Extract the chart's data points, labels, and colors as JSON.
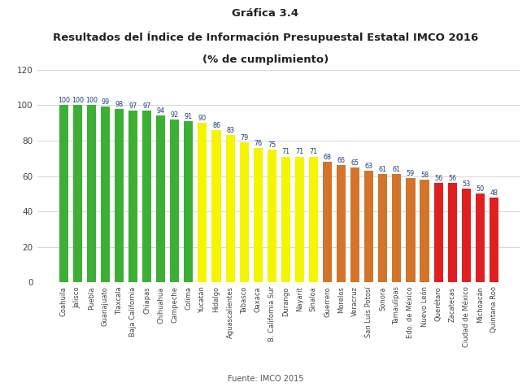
{
  "title_line1": "Gráfica 3.4",
  "title_line2": "Resultados del Índice de Información Presupuestal Estatal IMCO 2016",
  "title_line3": "(% de cumplimiento)",
  "footnote": "Fuente: IMCO 2015",
  "categories": [
    "Coahuila",
    "Jalisco",
    "Puebla",
    "Guanajuato",
    "Tlaxcala",
    "Baja California",
    "Chiapas",
    "Chihuahua",
    "Campeche",
    "Colima",
    "Yucatán",
    "Hidalgo",
    "Aguascalientes",
    "Tabasco",
    "Oaxaca",
    "B. California Sur",
    "Durango",
    "Nayarit",
    "Sinaloa",
    "Guerrero",
    "Morelos",
    "Veracruz",
    "San Luis Potosí",
    "Sonora",
    "Tamaulipas",
    "Edo. de México",
    "Nuevo León",
    "Querétaro",
    "Zacatecas",
    "Ciudad de México",
    "Michoacán",
    "Quintana Roo"
  ],
  "values": [
    100,
    100,
    100,
    99,
    98,
    97,
    97,
    94,
    92,
    91,
    90,
    86,
    83,
    79,
    76,
    75,
    71,
    71,
    71,
    68,
    66,
    65,
    63,
    61,
    61,
    59,
    58,
    56,
    56,
    53,
    50,
    48
  ],
  "colors": [
    "#3cb034",
    "#3cb034",
    "#3cb034",
    "#3cb034",
    "#3cb034",
    "#3cb034",
    "#3cb034",
    "#3cb034",
    "#3cb034",
    "#3cb034",
    "#f5f500",
    "#f5f500",
    "#f5f500",
    "#f5f500",
    "#f5f500",
    "#f5f500",
    "#f5f500",
    "#f5f500",
    "#f5f500",
    "#d4742a",
    "#d4742a",
    "#d4742a",
    "#d4742a",
    "#d4742a",
    "#d4742a",
    "#d4742a",
    "#d4742a",
    "#e02020",
    "#e02020",
    "#e02020",
    "#e02020",
    "#e02020"
  ],
  "ylim": [
    0,
    120
  ],
  "yticks": [
    0,
    20,
    40,
    60,
    80,
    100,
    120
  ],
  "value_label_color": "#1f3d7a",
  "value_label_fontsize": 5.8,
  "bg_color": "#ffffff",
  "grid_color": "#d0d0d0",
  "bar_width": 0.65
}
